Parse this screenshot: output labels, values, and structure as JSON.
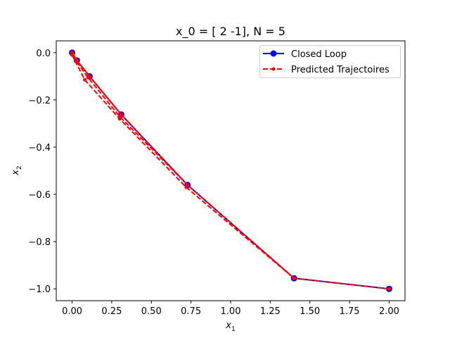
{
  "chart_data": {
    "type": "line",
    "title": "x_0 = [ 2 -1], N = 5",
    "xlabel": {
      "base": "x",
      "sub": "1"
    },
    "ylabel": {
      "base": "x",
      "sub": "2"
    },
    "xlim": [
      -0.1,
      2.1
    ],
    "ylim": [
      -1.05,
      0.05
    ],
    "xticks": [
      0.0,
      0.25,
      0.5,
      0.75,
      1.0,
      1.25,
      1.5,
      1.75,
      2.0
    ],
    "xtick_labels": [
      "0.00",
      "0.25",
      "0.50",
      "0.75",
      "1.00",
      "1.25",
      "1.50",
      "1.75",
      "2.00"
    ],
    "yticks": [
      0.0,
      -0.2,
      -0.4,
      -0.6,
      -0.8,
      -1.0
    ],
    "ytick_labels": [
      "0.0",
      "−0.2",
      "−0.4",
      "−0.6",
      "−0.8",
      "−1.0"
    ],
    "grid": false,
    "legend_position": "top-right",
    "series": [
      {
        "name": "Closed Loop",
        "color": "#0000ff",
        "style": "solid",
        "marker": "circle",
        "x": [
          2.0,
          1.4,
          0.728,
          0.31,
          0.11,
          0.03,
          0.0
        ],
        "y": [
          -1.0,
          -0.955,
          -0.56,
          -0.262,
          -0.1,
          -0.033,
          0.0
        ]
      },
      {
        "name": "Predicted Trajectoires",
        "color": "#ff0000",
        "style": "dashed",
        "marker": "dot",
        "trajectories": [
          {
            "x": [
              2.0,
              1.4,
              0.72,
              0.3,
              0.08,
              0.0
            ],
            "y": [
              -1.0,
              -0.955,
              -0.57,
              -0.28,
              -0.115,
              -0.01
            ]
          },
          {
            "x": [
              1.4,
              0.728,
              0.3,
              0.1,
              0.02,
              0.0
            ],
            "y": [
              -0.955,
              -0.56,
              -0.27,
              -0.105,
              -0.03,
              0.0
            ]
          },
          {
            "x": [
              0.728,
              0.31,
              0.11,
              0.03,
              0.005,
              0.0
            ],
            "y": [
              -0.56,
              -0.262,
              -0.1,
              -0.033,
              -0.008,
              0.0
            ]
          },
          {
            "x": [
              0.31,
              0.11,
              0.03,
              0.005,
              0.0,
              0.0
            ],
            "y": [
              -0.262,
              -0.1,
              -0.033,
              -0.008,
              0.0,
              0.0
            ]
          },
          {
            "x": [
              0.11,
              0.03,
              0.005,
              0.0,
              0.0,
              0.0
            ],
            "y": [
              -0.1,
              -0.033,
              -0.008,
              0.0,
              0.0,
              0.0
            ]
          },
          {
            "x": [
              0.03,
              0.005,
              0.0,
              0.0,
              0.0,
              0.0
            ],
            "y": [
              -0.033,
              -0.008,
              0.0,
              0.0,
              0.0,
              0.0
            ]
          }
        ]
      }
    ]
  }
}
